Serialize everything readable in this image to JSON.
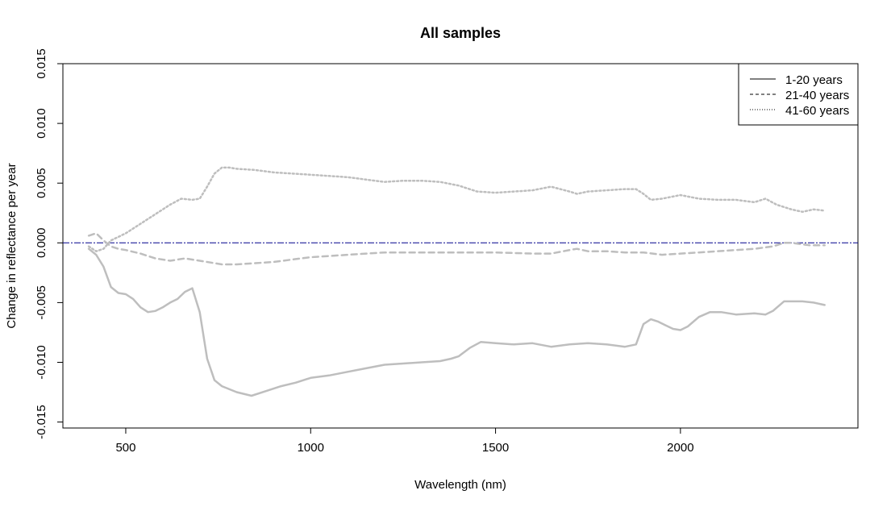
{
  "chart_data": {
    "type": "line",
    "title": "All samples",
    "xlabel": "Wavelength (nm)",
    "ylabel": "Change in reflectance per year",
    "xlim": [
      330,
      2480
    ],
    "ylim": [
      -0.0155,
      0.015
    ],
    "x_ticks": [
      500,
      1000,
      1500,
      2000
    ],
    "x_tick_labels": [
      "500",
      "1000",
      "1500",
      "2000"
    ],
    "y_ticks": [
      -0.015,
      -0.01,
      -0.005,
      0.0,
      0.005,
      0.01,
      0.015
    ],
    "y_tick_labels": [
      "-0.015",
      "-0.010",
      "-0.005",
      "0.000",
      "0.005",
      "0.010",
      "0.015"
    ],
    "grid": false,
    "legend_position": "top-right",
    "series_color": "#bebebe",
    "reference_line": {
      "y": 0.0,
      "color": "#00008b",
      "style": "dash-dot"
    },
    "series": [
      {
        "name": "1-20 years",
        "style": "solid",
        "x": [
          400,
          420,
          440,
          460,
          480,
          500,
          520,
          540,
          560,
          580,
          600,
          620,
          640,
          660,
          680,
          700,
          720,
          740,
          760,
          800,
          840,
          880,
          920,
          960,
          1000,
          1050,
          1100,
          1150,
          1200,
          1250,
          1300,
          1350,
          1380,
          1400,
          1430,
          1460,
          1500,
          1550,
          1600,
          1650,
          1700,
          1750,
          1800,
          1850,
          1880,
          1900,
          1920,
          1940,
          1960,
          1980,
          2000,
          2020,
          2050,
          2080,
          2110,
          2150,
          2200,
          2230,
          2250,
          2280,
          2300,
          2330,
          2360,
          2390
        ],
        "values": [
          -0.0005,
          -0.001,
          -0.002,
          -0.0037,
          -0.0042,
          -0.0043,
          -0.0047,
          -0.0054,
          -0.0058,
          -0.0057,
          -0.0054,
          -0.005,
          -0.0047,
          -0.0041,
          -0.0038,
          -0.0058,
          -0.0097,
          -0.0115,
          -0.012,
          -0.0125,
          -0.0128,
          -0.0124,
          -0.012,
          -0.0117,
          -0.0113,
          -0.0111,
          -0.0108,
          -0.0105,
          -0.0102,
          -0.0101,
          -0.01,
          -0.0099,
          -0.0097,
          -0.0095,
          -0.0088,
          -0.0083,
          -0.0084,
          -0.0085,
          -0.0084,
          -0.0087,
          -0.0085,
          -0.0084,
          -0.0085,
          -0.0087,
          -0.0085,
          -0.0068,
          -0.0064,
          -0.0066,
          -0.0069,
          -0.0072,
          -0.0073,
          -0.007,
          -0.0062,
          -0.0058,
          -0.0058,
          -0.006,
          -0.0059,
          -0.006,
          -0.0057,
          -0.0049,
          -0.0049,
          -0.0049,
          -0.005,
          -0.0052
        ]
      },
      {
        "name": "21-40 years",
        "style": "dashed",
        "x": [
          400,
          420,
          440,
          460,
          480,
          500,
          540,
          580,
          620,
          660,
          700,
          760,
          800,
          850,
          900,
          950,
          1000,
          1050,
          1100,
          1150,
          1200,
          1300,
          1400,
          1500,
          1600,
          1650,
          1700,
          1720,
          1750,
          1800,
          1850,
          1900,
          1950,
          2000,
          2050,
          2100,
          2150,
          2200,
          2250,
          2280,
          2300,
          2350,
          2390
        ],
        "values": [
          0.0006,
          0.0008,
          0.0002,
          -0.0003,
          -0.0005,
          -0.0006,
          -0.0009,
          -0.0013,
          -0.0015,
          -0.0013,
          -0.0015,
          -0.0018,
          -0.0018,
          -0.0017,
          -0.0016,
          -0.0014,
          -0.0012,
          -0.0011,
          -0.001,
          -0.0009,
          -0.0008,
          -0.0008,
          -0.0008,
          -0.0008,
          -0.0009,
          -0.0009,
          -0.0006,
          -0.0005,
          -0.0007,
          -0.0007,
          -0.0008,
          -0.0008,
          -0.001,
          -0.0009,
          -0.0008,
          -0.0007,
          -0.0006,
          -0.0005,
          -0.0003,
          0.0,
          0.0,
          -0.0002,
          -0.0002
        ]
      },
      {
        "name": "41-60 years",
        "style": "dotted",
        "x": [
          400,
          420,
          440,
          460,
          480,
          500,
          540,
          580,
          620,
          650,
          680,
          700,
          720,
          740,
          760,
          780,
          800,
          850,
          900,
          950,
          1000,
          1050,
          1100,
          1150,
          1200,
          1250,
          1300,
          1350,
          1400,
          1450,
          1500,
          1550,
          1600,
          1650,
          1700,
          1720,
          1750,
          1800,
          1850,
          1880,
          1900,
          1920,
          1950,
          2000,
          2050,
          2100,
          2150,
          2200,
          2230,
          2260,
          2300,
          2330,
          2360,
          2390
        ],
        "values": [
          -0.0003,
          -0.0007,
          -0.0005,
          0.0002,
          0.0005,
          0.0008,
          0.0016,
          0.0024,
          0.0032,
          0.0037,
          0.0036,
          0.0037,
          0.0047,
          0.0058,
          0.0063,
          0.0063,
          0.0062,
          0.0061,
          0.0059,
          0.0058,
          0.0057,
          0.0056,
          0.0055,
          0.0053,
          0.0051,
          0.0052,
          0.0052,
          0.0051,
          0.0048,
          0.0043,
          0.0042,
          0.0043,
          0.0044,
          0.0047,
          0.0043,
          0.0041,
          0.0043,
          0.0044,
          0.0045,
          0.0045,
          0.0041,
          0.0036,
          0.0037,
          0.004,
          0.0037,
          0.0036,
          0.0036,
          0.0034,
          0.0037,
          0.0032,
          0.0028,
          0.0026,
          0.0028,
          0.0027
        ]
      }
    ]
  }
}
